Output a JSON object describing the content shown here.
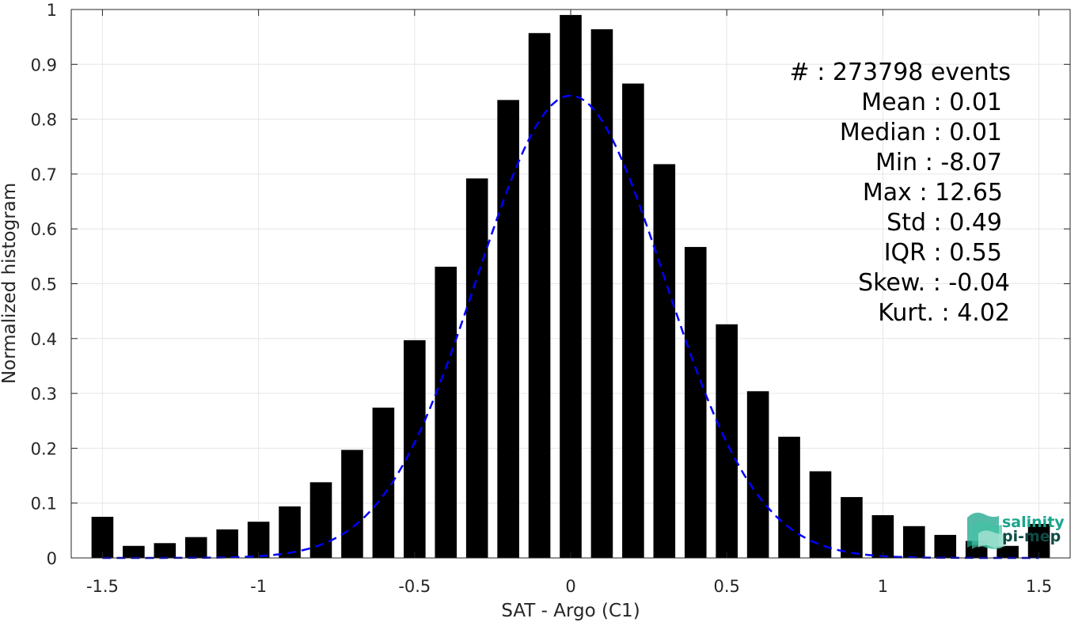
{
  "chart_data": {
    "type": "bar",
    "xlabel": "SAT - Argo (C1)",
    "ylabel": "Normalized histogram",
    "xlim": [
      -1.6,
      1.6
    ],
    "ylim": [
      0,
      1
    ],
    "xticks": [
      -1.5,
      -1,
      -0.5,
      0,
      0.5,
      1,
      1.5
    ],
    "xtick_labels": [
      "-1.5",
      "-1",
      "-0.5",
      "0",
      "0.5",
      "1",
      "1.5"
    ],
    "yticks": [
      0,
      0.1,
      0.2,
      0.3,
      0.4,
      0.5,
      0.6,
      0.7,
      0.8,
      0.9,
      1
    ],
    "ytick_labels": [
      "0",
      "0.1",
      "0.2",
      "0.3",
      "0.4",
      "0.5",
      "0.6",
      "0.7",
      "0.8",
      "0.9",
      "1"
    ],
    "grid": true,
    "bar_color": "#000000",
    "fit_color": "#0000ff",
    "bar_width": 0.07,
    "bins": {
      "centers": [
        -1.5,
        -1.4,
        -1.3,
        -1.2,
        -1.1,
        -1.0,
        -0.9,
        -0.8,
        -0.7,
        -0.6,
        -0.5,
        -0.4,
        -0.3,
        -0.2,
        -0.1,
        0.0,
        0.1,
        0.2,
        0.3,
        0.4,
        0.5,
        0.6,
        0.7,
        0.8,
        0.9,
        1.0,
        1.1,
        1.2,
        1.3,
        1.4,
        1.5
      ],
      "values": [
        0.075,
        0.022,
        0.027,
        0.038,
        0.052,
        0.066,
        0.094,
        0.138,
        0.197,
        0.274,
        0.397,
        0.531,
        0.692,
        0.835,
        0.957,
        0.99,
        0.964,
        0.865,
        0.718,
        0.567,
        0.426,
        0.304,
        0.221,
        0.158,
        0.111,
        0.078,
        0.058,
        0.042,
        0.031,
        0.022,
        0.062
      ]
    },
    "gaussian_fit": {
      "style": "dashed",
      "amplitude": 0.843,
      "mean": 0.0,
      "sigma": 0.3,
      "x_range": [
        -1.5,
        1.5
      ]
    },
    "annotations": [
      {
        "text": "#  : 273798 events",
        "anchor": "end"
      },
      {
        "text": "Mean : 0.01",
        "anchor": "end"
      },
      {
        "text": "Median : 0.01",
        "anchor": "end"
      },
      {
        "text": "Min : -8.07",
        "anchor": "end"
      },
      {
        "text": "Max : 12.65",
        "anchor": "end"
      },
      {
        "text": "Std : 0.49",
        "anchor": "end"
      },
      {
        "text": "IQR : 0.55",
        "anchor": "end"
      },
      {
        "text": "Skew. : -0.04",
        "anchor": "end"
      },
      {
        "text": "Kurt. : 4.02",
        "anchor": "end"
      }
    ]
  },
  "logo": {
    "line1": "salinity",
    "line2": "pi-mep",
    "color_primary": "#1aa58c",
    "color_secondary": "#0d4b45"
  }
}
